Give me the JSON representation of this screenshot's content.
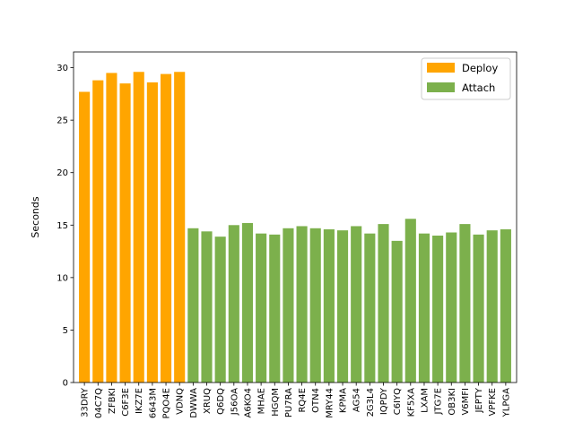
{
  "chart_data": {
    "type": "bar",
    "title": "",
    "xlabel": "",
    "ylabel": "Seconds",
    "ylim": [
      0,
      31.5
    ],
    "yticks": [
      0,
      5,
      10,
      15,
      20,
      25,
      30
    ],
    "grid": false,
    "legend_position": "top-right",
    "categories": [
      "33DRY",
      "04C7Q",
      "ZFBKI",
      "C6F3E",
      "IKZ7E",
      "6643M",
      "PQO4E",
      "VDNQ",
      "DWWA",
      "XRUQ",
      "Q6DQ",
      "J56OA",
      "A6KO4",
      "MHAE",
      "HGQM",
      "PU7RA",
      "RQ4E",
      "OTN4",
      "MRY44",
      "KPMA",
      "AG54",
      "2G3L4",
      "IQPDY",
      "C6IYQ",
      "KF5XA",
      "LXAM",
      "JTG7E",
      "OB3KI",
      "V6MFI",
      "JEPTY",
      "VPFKE",
      "YLPGA"
    ],
    "series": [
      {
        "name": "Deploy",
        "color": "#FFA500",
        "values": [
          27.7,
          28.8,
          29.5,
          28.5,
          29.6,
          28.6,
          29.4,
          29.6,
          null,
          null,
          null,
          null,
          null,
          null,
          null,
          null,
          null,
          null,
          null,
          null,
          null,
          null,
          null,
          null,
          null,
          null,
          null,
          null,
          null,
          null,
          null,
          null
        ]
      },
      {
        "name": "Attach",
        "color": "#7CB04C",
        "values": [
          null,
          null,
          null,
          null,
          null,
          null,
          null,
          null,
          14.7,
          14.4,
          13.9,
          15.0,
          15.2,
          14.2,
          14.1,
          14.7,
          14.9,
          14.7,
          14.6,
          14.5,
          14.9,
          14.2,
          15.1,
          13.5,
          15.6,
          14.2,
          14.0,
          14.3,
          15.1,
          14.1,
          14.5,
          14.6
        ]
      }
    ]
  }
}
